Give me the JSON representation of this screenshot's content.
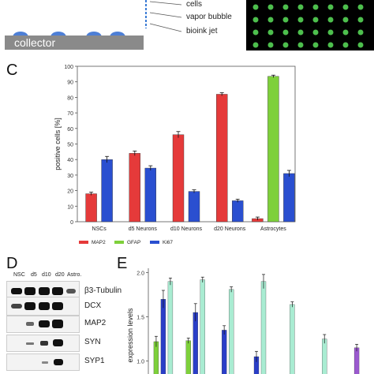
{
  "panelA": {
    "labels": [
      "cells",
      "vapor bubble",
      "bioink jet"
    ],
    "collector": "collector"
  },
  "panelC": {
    "letter": "C",
    "chart_data": {
      "type": "bar",
      "categories": [
        "NSCs",
        "d5 Neurons",
        "d10 Neurons",
        "d20 Neurons",
        "Astrocytes"
      ],
      "series": [
        {
          "name": "MAP2",
          "values": [
            18,
            44,
            56,
            82,
            2
          ],
          "errors": [
            1,
            1.5,
            2,
            1,
            1
          ],
          "color": "#e53a3a"
        },
        {
          "name": "GFAP",
          "values": [
            0,
            0,
            0,
            0,
            93.5
          ],
          "errors": [
            0,
            0,
            0,
            0,
            0.8
          ],
          "color": "#7ed03b"
        },
        {
          "name": "Ki67",
          "values": [
            40,
            34.5,
            19.5,
            13.5,
            31
          ],
          "errors": [
            2,
            1.5,
            1,
            1,
            2
          ],
          "color": "#2a4fd0"
        }
      ],
      "ylabel": "positive cells [%]",
      "ylim": [
        0,
        100
      ],
      "yticks": [
        "0",
        "10",
        "20",
        "30",
        "40",
        "50",
        "60",
        "70",
        "80",
        "90",
        "100"
      ]
    }
  },
  "panelD": {
    "letter": "D",
    "columns": [
      "NSC",
      "d5",
      "d10",
      "d20",
      "Astro."
    ],
    "proteins": [
      "β3-Tubulin",
      "DCX",
      "MAP2",
      "SYN",
      "SYP1"
    ]
  },
  "panelE": {
    "letter": "E",
    "chart_data": {
      "type": "bar",
      "ylabel": "expression levels",
      "yticks": [
        "1.0",
        "1.5",
        "2.0"
      ],
      "ylim": [
        0.8,
        2.05
      ],
      "groups": [
        {
          "bars": [
            {
              "value": 1.22,
              "err": 0.06,
              "color": "#7ed03b"
            },
            {
              "value": 1.7,
              "err": 0.1,
              "color": "#2a3ec8"
            },
            {
              "value": 1.9,
              "err": 0.04,
              "color": "#a9ecd2"
            }
          ]
        },
        {
          "bars": [
            {
              "value": 1.23,
              "err": 0.03,
              "color": "#7ed03b"
            },
            {
              "value": 1.55,
              "err": 0.1,
              "color": "#2a3ec8"
            },
            {
              "value": 1.92,
              "err": 0.03,
              "color": "#a9ecd2"
            }
          ]
        },
        {
          "bars": [
            {
              "value": 1.35,
              "err": 0.05,
              "color": "#2a3ec8"
            },
            {
              "value": 1.81,
              "err": 0.03,
              "color": "#a9ecd2"
            }
          ]
        },
        {
          "bars": [
            {
              "value": 1.05,
              "err": 0.06,
              "color": "#2a3ec8"
            },
            {
              "value": 1.9,
              "err": 0.08,
              "color": "#a9ecd2"
            }
          ]
        },
        {
          "bars": [
            {
              "value": 1.64,
              "err": 0.03,
              "color": "#a9ecd2"
            }
          ]
        },
        {
          "bars": [
            {
              "value": 1.25,
              "err": 0.05,
              "color": "#a9ecd2"
            }
          ]
        },
        {
          "bars": [
            {
              "value": 1.15,
              "err": 0.04,
              "color": "#9b59d0"
            }
          ]
        }
      ]
    }
  }
}
